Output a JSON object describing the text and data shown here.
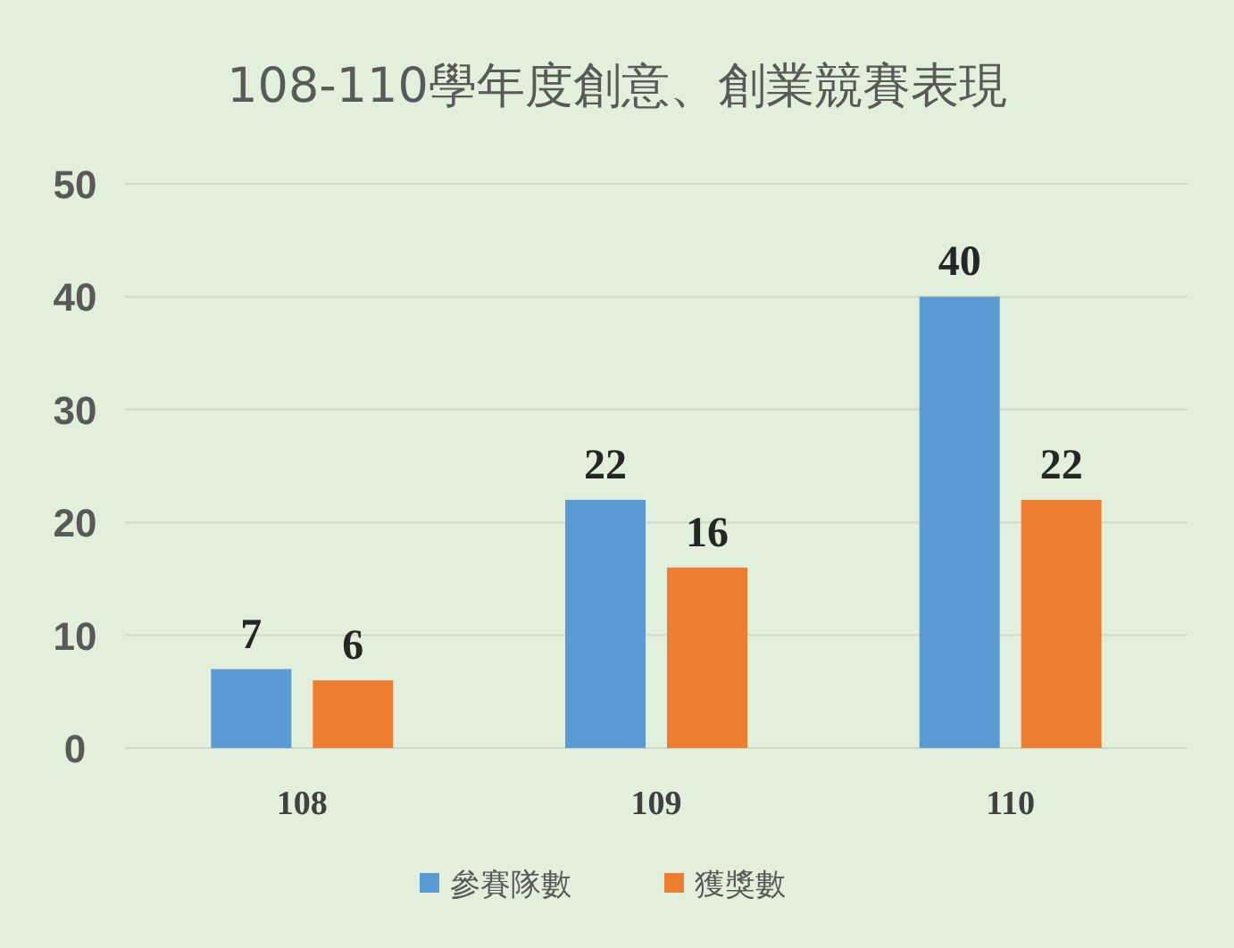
{
  "chart_data": {
    "type": "bar",
    "title": "108-110學年度創意、創業競賽表現",
    "categories": [
      "108",
      "109",
      "110"
    ],
    "series": [
      {
        "name": "參賽隊數",
        "color": "#5b9bd5",
        "values": [
          7,
          22,
          40
        ]
      },
      {
        "name": "獲獎數",
        "color": "#ed7d31",
        "values": [
          6,
          16,
          22
        ]
      }
    ],
    "ylim": [
      0,
      50
    ],
    "yticks": [
      0,
      10,
      20,
      30,
      40,
      50
    ],
    "grid": "y",
    "legend": "bottom",
    "data_labels": true
  }
}
